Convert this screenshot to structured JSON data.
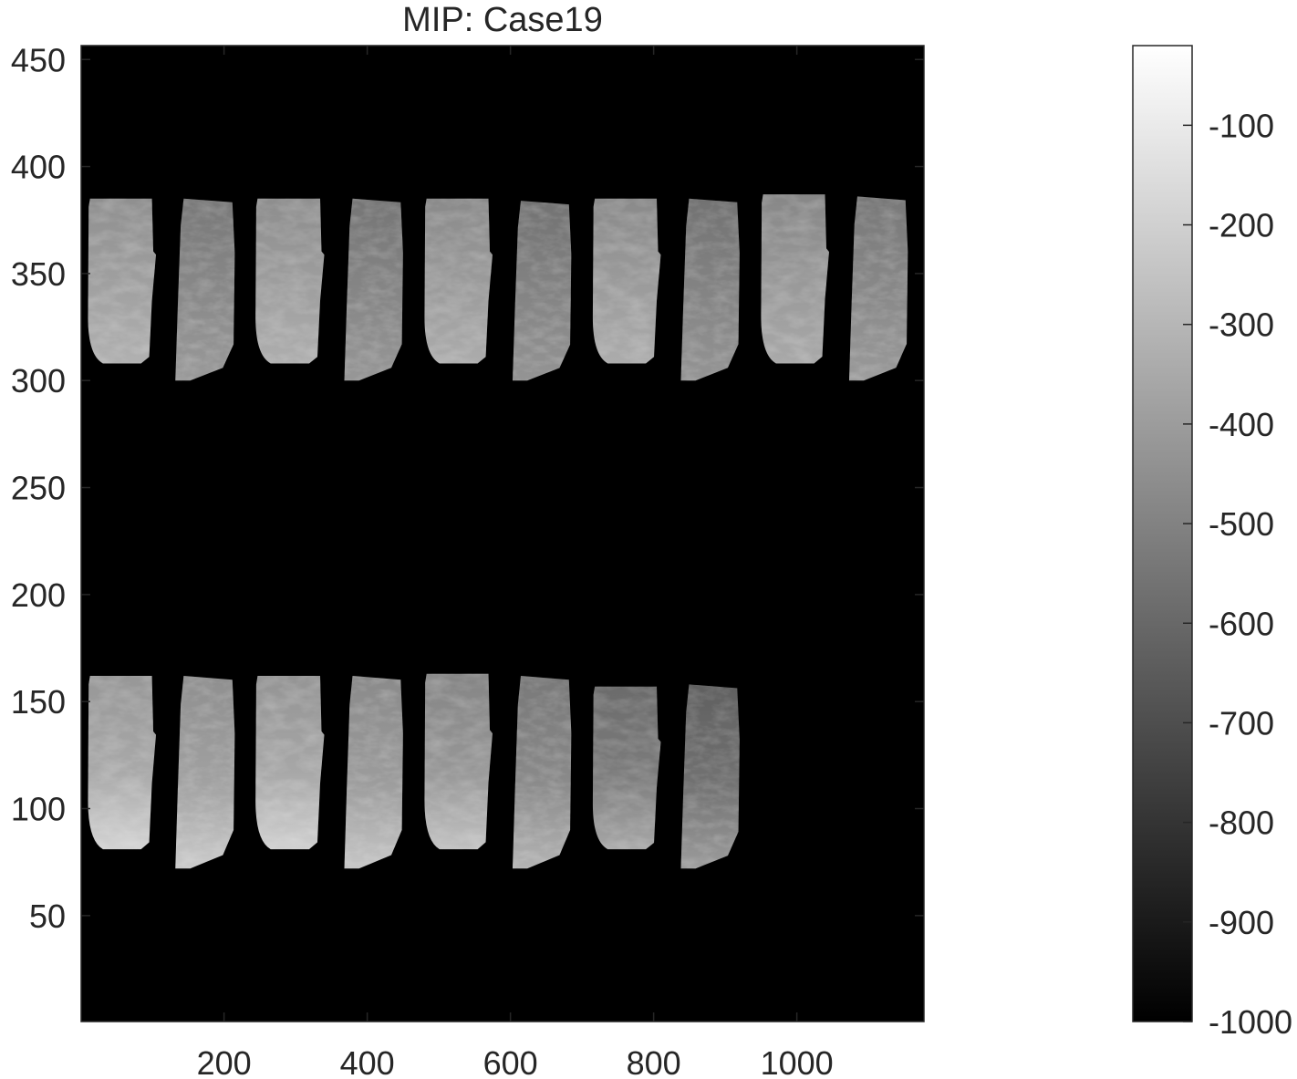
{
  "chart_data": {
    "type": "heatmap",
    "title": "MIP: Case19",
    "xlabel": "",
    "ylabel": "",
    "colormap": "gray",
    "xlim": [
      0.5,
      1177.5
    ],
    "ylim": [
      0.5,
      456.5
    ],
    "x_ticks": [
      200,
      400,
      600,
      800,
      1000
    ],
    "y_ticks": [
      50,
      100,
      150,
      200,
      250,
      300,
      350,
      400,
      450
    ],
    "background_value": -1000,
    "colorbar": {
      "min": -1000,
      "max": -20,
      "ticks": [
        -100,
        -200,
        -300,
        -400,
        -500,
        -600,
        -700,
        -800,
        -900,
        -1000
      ]
    },
    "tiles": [
      {
        "row": 1,
        "xmin": 10,
        "xmax": 105,
        "ymin": 308,
        "ymax": 385,
        "kind": "a",
        "mean": -380
      },
      {
        "row": 1,
        "xmin": 132,
        "xmax": 215,
        "ymin": 300,
        "ymax": 385,
        "kind": "b",
        "mean": -470
      },
      {
        "row": 1,
        "xmin": 244,
        "xmax": 340,
        "ymin": 308,
        "ymax": 385,
        "kind": "a",
        "mean": -390
      },
      {
        "row": 1,
        "xmin": 368,
        "xmax": 450,
        "ymin": 300,
        "ymax": 385,
        "kind": "b",
        "mean": -480
      },
      {
        "row": 1,
        "xmin": 480,
        "xmax": 575,
        "ymin": 308,
        "ymax": 385,
        "kind": "a",
        "mean": -400
      },
      {
        "row": 1,
        "xmin": 603,
        "xmax": 685,
        "ymin": 300,
        "ymax": 384,
        "kind": "b",
        "mean": -490
      },
      {
        "row": 1,
        "xmin": 715,
        "xmax": 810,
        "ymin": 308,
        "ymax": 385,
        "kind": "a",
        "mean": -400
      },
      {
        "row": 1,
        "xmin": 838,
        "xmax": 920,
        "ymin": 300,
        "ymax": 385,
        "kind": "b",
        "mean": -490
      },
      {
        "row": 1,
        "xmin": 950,
        "xmax": 1045,
        "ymin": 308,
        "ymax": 387,
        "kind": "a",
        "mean": -410
      },
      {
        "row": 1,
        "xmin": 1073,
        "xmax": 1155,
        "ymin": 300,
        "ymax": 386,
        "kind": "b",
        "mean": -470
      },
      {
        "row": 2,
        "xmin": 10,
        "xmax": 105,
        "ymin": 81,
        "ymax": 162,
        "kind": "a",
        "mean": -350
      },
      {
        "row": 2,
        "xmin": 132,
        "xmax": 215,
        "ymin": 72,
        "ymax": 162,
        "kind": "b",
        "mean": -380
      },
      {
        "row": 2,
        "xmin": 244,
        "xmax": 340,
        "ymin": 81,
        "ymax": 162,
        "kind": "a",
        "mean": -360
      },
      {
        "row": 2,
        "xmin": 368,
        "xmax": 450,
        "ymin": 72,
        "ymax": 162,
        "kind": "b",
        "mean": -400
      },
      {
        "row": 2,
        "xmin": 480,
        "xmax": 575,
        "ymin": 81,
        "ymax": 163,
        "kind": "a",
        "mean": -420
      },
      {
        "row": 2,
        "xmin": 603,
        "xmax": 685,
        "ymin": 72,
        "ymax": 162,
        "kind": "b",
        "mean": -470
      },
      {
        "row": 2,
        "xmin": 715,
        "xmax": 810,
        "ymin": 81,
        "ymax": 157,
        "kind": "a",
        "mean": -520
      },
      {
        "row": 2,
        "xmin": 838,
        "xmax": 920,
        "ymin": 72,
        "ymax": 158,
        "kind": "b",
        "mean": -560
      }
    ]
  }
}
